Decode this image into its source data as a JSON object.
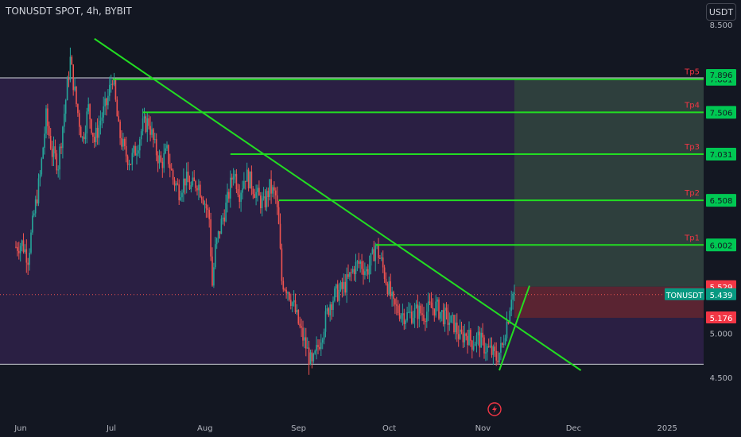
{
  "header": {
    "title": "TONUSDT SPOT, 4h, BYBIT"
  },
  "currency_button": {
    "label": "USDT"
  },
  "colors": {
    "background": "#131722",
    "range_zone": "#2a1f43",
    "target_zone": "#2e3f3d",
    "stop_zone": "#5a2432",
    "candle_up": "#26a69a",
    "candle_down": "#ef5350",
    "trendline": "#22dd22",
    "tp_label": "#f23645",
    "tp_badge": "#00c853",
    "stop_badge": "#f23645",
    "price_badge": "#089981"
  },
  "chart_data": {
    "type": "candlestick",
    "symbol": "TONUSDT",
    "timeframe": "4h",
    "exchange": "BYBIT",
    "quote_currency": "USDT",
    "x_ticks": [
      "Jun",
      "Jul",
      "Aug",
      "Sep",
      "Oct",
      "Nov",
      "Dec",
      "2025"
    ],
    "x_tick_dates": [
      "2024-06-01",
      "2024-07-01",
      "2024-08-01",
      "2024-09-01",
      "2024-10-01",
      "2024-11-01",
      "2024-12-01",
      "2025-01-01"
    ],
    "y_ticks": [
      {
        "value": 4.5,
        "label": "4.500"
      },
      {
        "value": 5.0,
        "label": "5.000"
      },
      {
        "value": 8.5,
        "label": "8.500"
      }
    ],
    "ylim": [
      4.35,
      8.6
    ],
    "last_price": {
      "symbol": "TONUSDT",
      "value": 5.439,
      "label": "5.439"
    },
    "entry": {
      "value": 5.529,
      "label": "5.529"
    },
    "stop": {
      "value": 5.176,
      "label": "5.176"
    },
    "targets": [
      {
        "name": "Tp1",
        "value": 6.002,
        "label": "6.002",
        "start_date": "2024-09-28"
      },
      {
        "name": "Tp2",
        "value": 6.508,
        "label": "6.508",
        "start_date": "2024-08-27"
      },
      {
        "name": "Tp3",
        "value": 7.031,
        "label": "7.031",
        "start_date": "2024-08-11"
      },
      {
        "name": "Tp4",
        "value": 7.506,
        "label": "7.506",
        "start_date": "2024-07-13"
      },
      {
        "name": "Tp5",
        "value": 7.881,
        "label": "7.881",
        "start_date": "2024-07-03"
      }
    ],
    "range_top": {
      "value": 7.896,
      "label": "7.896"
    },
    "range_bottom": 4.65,
    "range_start": "2024-06-01",
    "position_start": "2024-11-13",
    "trendlines": [
      {
        "from": [
          "2024-06-27",
          8.34
        ],
        "to": [
          "2024-12-05",
          4.58
        ]
      },
      {
        "from": [
          "2024-11-08",
          4.58
        ],
        "to": [
          "2024-11-18",
          5.54
        ]
      }
    ],
    "price_path": [
      [
        "2024-06-01",
        5.98
      ],
      [
        "2024-06-03",
        6.02
      ],
      [
        "2024-06-05",
        5.86
      ],
      [
        "2024-06-07",
        6.35
      ],
      [
        "2024-06-09",
        6.78
      ],
      [
        "2024-06-11",
        7.45
      ],
      [
        "2024-06-13",
        7.05
      ],
      [
        "2024-06-15",
        6.92
      ],
      [
        "2024-06-17",
        7.5
      ],
      [
        "2024-06-19",
        8.1
      ],
      [
        "2024-06-21",
        7.6
      ],
      [
        "2024-06-23",
        7.2
      ],
      [
        "2024-06-25",
        7.55
      ],
      [
        "2024-06-27",
        7.18
      ],
      [
        "2024-06-29",
        7.42
      ],
      [
        "2024-07-01",
        7.6
      ],
      [
        "2024-07-03",
        7.92
      ],
      [
        "2024-07-05",
        7.3
      ],
      [
        "2024-07-07",
        7.05
      ],
      [
        "2024-07-09",
        6.95
      ],
      [
        "2024-07-11",
        7.12
      ],
      [
        "2024-07-13",
        7.35
      ],
      [
        "2024-07-15",
        7.4
      ],
      [
        "2024-07-17",
        7.1
      ],
      [
        "2024-07-19",
        6.92
      ],
      [
        "2024-07-21",
        7.05
      ],
      [
        "2024-07-23",
        6.75
      ],
      [
        "2024-07-25",
        6.62
      ],
      [
        "2024-07-27",
        6.75
      ],
      [
        "2024-07-29",
        6.65
      ],
      [
        "2024-07-31",
        6.72
      ],
      [
        "2024-08-02",
        6.55
      ],
      [
        "2024-08-04",
        6.3
      ],
      [
        "2024-08-05",
        5.55
      ],
      [
        "2024-08-06",
        5.95
      ],
      [
        "2024-08-08",
        6.25
      ],
      [
        "2024-08-10",
        6.5
      ],
      [
        "2024-08-12",
        6.85
      ],
      [
        "2024-08-14",
        6.6
      ],
      [
        "2024-08-16",
        6.8
      ],
      [
        "2024-08-18",
        6.7
      ],
      [
        "2024-08-20",
        6.55
      ],
      [
        "2024-08-22",
        6.45
      ],
      [
        "2024-08-24",
        6.65
      ],
      [
        "2024-08-26",
        6.55
      ],
      [
        "2024-08-27",
        6.2
      ],
      [
        "2024-08-28",
        5.6
      ],
      [
        "2024-08-30",
        5.5
      ],
      [
        "2024-09-01",
        5.3
      ],
      [
        "2024-09-03",
        5.05
      ],
      [
        "2024-09-05",
        4.85
      ],
      [
        "2024-09-07",
        4.62
      ],
      [
        "2024-09-09",
        4.85
      ],
      [
        "2024-09-11",
        5.1
      ],
      [
        "2024-09-13",
        5.35
      ],
      [
        "2024-09-15",
        5.45
      ],
      [
        "2024-09-17",
        5.5
      ],
      [
        "2024-09-19",
        5.6
      ],
      [
        "2024-09-21",
        5.75
      ],
      [
        "2024-09-23",
        5.8
      ],
      [
        "2024-09-25",
        5.7
      ],
      [
        "2024-09-27",
        5.85
      ],
      [
        "2024-09-28",
        6.0
      ],
      [
        "2024-09-30",
        5.8
      ],
      [
        "2024-10-02",
        5.55
      ],
      [
        "2024-10-04",
        5.3
      ],
      [
        "2024-10-06",
        5.25
      ],
      [
        "2024-10-08",
        5.2
      ],
      [
        "2024-10-10",
        5.22
      ],
      [
        "2024-10-12",
        5.25
      ],
      [
        "2024-10-14",
        5.22
      ],
      [
        "2024-10-16",
        5.28
      ],
      [
        "2024-10-18",
        5.3
      ],
      [
        "2024-10-20",
        5.22
      ],
      [
        "2024-10-22",
        5.15
      ],
      [
        "2024-10-24",
        5.1
      ],
      [
        "2024-10-26",
        4.95
      ],
      [
        "2024-10-28",
        5.0
      ],
      [
        "2024-10-30",
        4.9
      ],
      [
        "2024-11-01",
        4.95
      ],
      [
        "2024-11-03",
        4.85
      ],
      [
        "2024-11-05",
        4.8
      ],
      [
        "2024-11-07",
        4.72
      ],
      [
        "2024-11-09",
        4.85
      ],
      [
        "2024-11-10",
        5.05
      ],
      [
        "2024-11-11",
        5.2
      ],
      [
        "2024-11-12",
        5.45
      ],
      [
        "2024-11-13",
        5.44
      ]
    ]
  }
}
